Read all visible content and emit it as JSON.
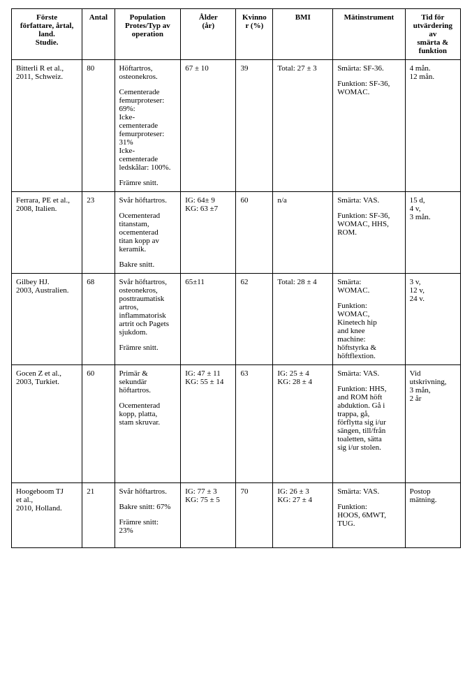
{
  "table": {
    "columns": [
      {
        "key": "author",
        "lines": [
          "Förste",
          "författare, årtal,",
          "land.",
          "Studie."
        ]
      },
      {
        "key": "antal",
        "lines": [
          "Antal"
        ]
      },
      {
        "key": "population",
        "lines": [
          "Population",
          "Protes/Typ av",
          "operation"
        ]
      },
      {
        "key": "alder",
        "lines": [
          "Ålder",
          "(år)"
        ]
      },
      {
        "key": "kvinnor",
        "lines": [
          "Kvinno",
          "r (%)"
        ]
      },
      {
        "key": "bmi",
        "lines": [
          "BMI"
        ]
      },
      {
        "key": "matinstrument",
        "lines": [
          "Mätinstrument"
        ]
      },
      {
        "key": "tid",
        "lines": [
          "Tid för",
          "utvärdering",
          "av",
          "smärta &",
          "funktion"
        ]
      }
    ],
    "rows": [
      {
        "author": [
          [
            "Bitterli R et al.,",
            "2011, Schweiz."
          ]
        ],
        "antal": [
          [
            "80"
          ]
        ],
        "population": [
          [
            "Höftartros,",
            "osteonekros."
          ],
          [
            "Cementerade",
            "femurproteser:",
            "69%:",
            "Icke-",
            "cementerade",
            "femurproteser:",
            "31%",
            "Icke-",
            "cementerade",
            "ledskålar: 100%."
          ],
          [
            "Främre snitt."
          ]
        ],
        "alder": [
          [
            "67 ± 10"
          ]
        ],
        "kvinnor": [
          [
            "39"
          ]
        ],
        "bmi": [
          [
            "Total: 27 ± 3"
          ]
        ],
        "matinstrument": [
          [
            "Smärta: SF-36."
          ],
          [
            "Funktion: SF-36,",
            "WOMAC."
          ]
        ],
        "tid": [
          [
            "4 mån.",
            "12 mån."
          ]
        ]
      },
      {
        "author": [
          [
            "Ferrara, PE et al.,",
            "2008, Italien."
          ]
        ],
        "antal": [
          [
            "23"
          ]
        ],
        "population": [
          [
            "Svår höftartros."
          ],
          [
            "Ocementerad",
            "titanstam,",
            "ocementerad",
            "titan kopp av",
            "keramik."
          ],
          [
            "Bakre snitt."
          ]
        ],
        "alder": [
          [
            "IG: 64± 9",
            "KG: 63 ±7"
          ]
        ],
        "kvinnor": [
          [
            "60"
          ]
        ],
        "bmi": [
          [
            "n/a"
          ]
        ],
        "matinstrument": [
          [
            "Smärta: VAS."
          ],
          [
            "Funktion: SF-36,",
            "WOMAC, HHS,",
            "ROM."
          ]
        ],
        "tid": [
          [
            "15 d,",
            "4 v,",
            "3 mån."
          ]
        ]
      },
      {
        "author": [
          [
            "Gilbey HJ.",
            "2003, Australien."
          ]
        ],
        "antal": [
          [
            "68"
          ]
        ],
        "population": [
          [
            "Svår höftartros,",
            "osteonekros,",
            "posttraumatisk",
            "artros,",
            "inflammatorisk",
            "artrit och Pagets",
            "sjukdom."
          ],
          [
            "Främre snitt."
          ]
        ],
        "alder": [
          [
            "65±11"
          ]
        ],
        "kvinnor": [
          [
            "62"
          ]
        ],
        "bmi": [
          [
            "Total: 28 ± 4"
          ]
        ],
        "matinstrument": [
          [
            "Smärta:",
            "WOMAC."
          ],
          [
            "Funktion:",
            "WOMAC,",
            "Kinetech hip",
            "and knee",
            "machine:",
            "höftstyrka &",
            "höftflextion."
          ]
        ],
        "tid": [
          [
            "3 v,",
            "12 v,",
            "24 v."
          ]
        ]
      },
      {
        "author": [
          [
            "Gocen Z et al.,",
            "2003, Turkiet."
          ]
        ],
        "antal": [
          [
            "60"
          ]
        ],
        "population": [
          [
            "Primär &",
            "sekundär",
            "höftartros."
          ],
          [
            ""
          ],
          [
            "Ocementerad",
            "kopp, platta,",
            "stam skruvar."
          ]
        ],
        "alder": [
          [
            "IG: 47 ± 11",
            "KG: 55 ± 14"
          ]
        ],
        "kvinnor": [
          [
            "63"
          ]
        ],
        "bmi": [
          [
            "IG: 25 ± 4",
            "KG: 28 ± 4"
          ]
        ],
        "matinstrument": [
          [
            "Smärta: VAS."
          ],
          [
            "Funktion: HHS,",
            "and ROM höft",
            "abduktion. Gå i",
            "trappa, gå,",
            "förflytta sig i/ur",
            "sängen, till/från",
            "toaletten, sätta",
            "sig i/ur stolen."
          ]
        ],
        "tid": [
          [
            "Vid",
            "utskrivning,",
            "3 mån,",
            "2 år"
          ]
        ],
        "trailing_blanks": 6
      },
      {
        "author": [
          [
            "Hoogeboom TJ",
            "et al.,",
            "2010, Holland."
          ]
        ],
        "antal": [
          [
            "21"
          ]
        ],
        "population": [
          [
            "Svår höftartros."
          ],
          [
            "Bakre snitt: 67%"
          ],
          [
            "Främre snitt:",
            "23%"
          ]
        ],
        "alder": [
          [
            "IG: 77 ± 3",
            "KG: 75 ± 5"
          ]
        ],
        "kvinnor": [
          [
            "70"
          ]
        ],
        "bmi": [
          [
            "IG: 26 ± 3",
            "KG: 27 ± 4"
          ]
        ],
        "matinstrument": [
          [
            "Smärta: VAS."
          ],
          [
            "Funktion:",
            "HOOS, 6MWT,",
            "TUG."
          ]
        ],
        "tid": [
          [
            "Postop",
            "mätning."
          ]
        ],
        "trailing_blanks": 2
      }
    ]
  }
}
